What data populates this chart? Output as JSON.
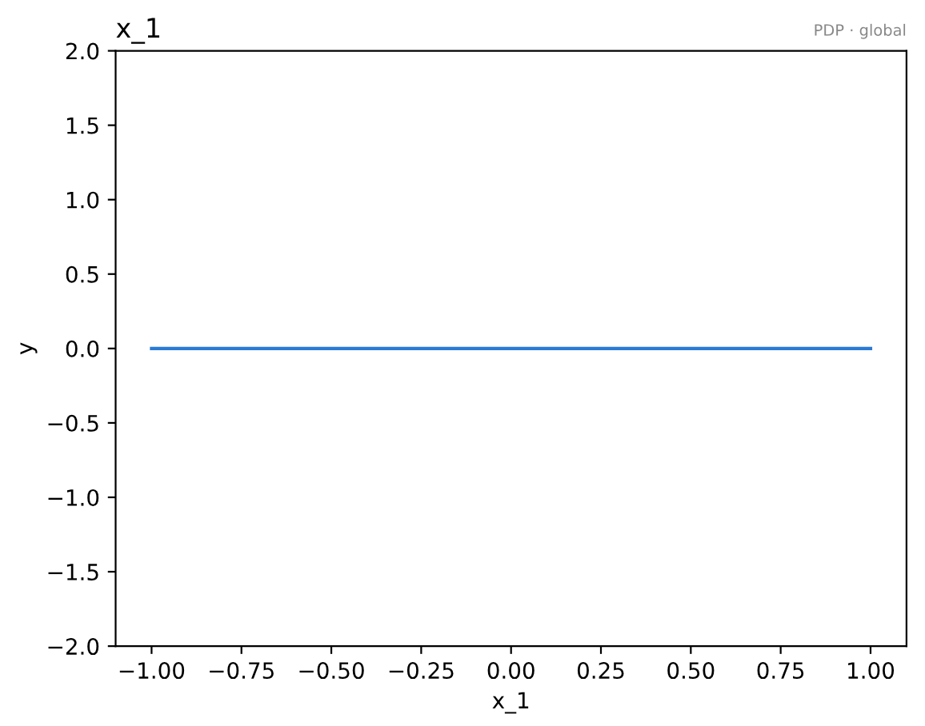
{
  "chart_data": {
    "type": "line",
    "title": "x_1",
    "xlabel": "x_1",
    "ylabel": "y",
    "annotations": [
      "PDP · global"
    ],
    "x": [
      -1.0,
      1.0
    ],
    "series": [
      {
        "color": "#2a7ad5",
        "values": [
          0,
          0
        ]
      }
    ],
    "xlim": [
      -1.1,
      1.1
    ],
    "xticks": [
      {
        "value": -1,
        "label": "−1.00"
      },
      {
        "value": -0.75,
        "label": "−0.75"
      },
      {
        "value": -0.5,
        "label": "−0.50"
      },
      {
        "value": -0.25,
        "label": "−0.25"
      },
      {
        "value": 0,
        "label": "0.00"
      },
      {
        "value": 0.25,
        "label": "0.25"
      },
      {
        "value": 0.5,
        "label": "0.50"
      },
      {
        "value": 0.75,
        "label": "0.75"
      },
      {
        "value": 1,
        "label": "1.00"
      }
    ],
    "ylim": [
      -2,
      2
    ],
    "yticks": [
      {
        "value": -2,
        "label": "−2.0"
      },
      {
        "value": -1.5,
        "label": "−1.5"
      },
      {
        "value": -1,
        "label": "−1.0"
      },
      {
        "value": -0.5,
        "label": "−0.5"
      },
      {
        "value": 0,
        "label": "0.0"
      },
      {
        "value": 0.5,
        "label": "0.5"
      },
      {
        "value": 1,
        "label": "1.0"
      },
      {
        "value": 1.5,
        "label": "1.5"
      },
      {
        "value": 2,
        "label": "2.0"
      }
    ],
    "grid": false,
    "legend": false
  }
}
